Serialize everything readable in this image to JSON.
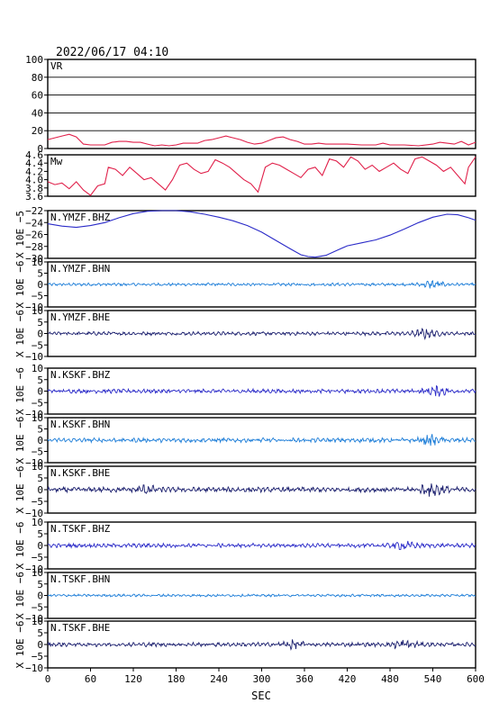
{
  "header": {
    "timestamp": "2022/06/17 04:10"
  },
  "chart_data": {
    "type": "line",
    "xlabel": "SEC",
    "xlim": [
      0,
      600
    ],
    "xticks": [
      "0",
      "60",
      "120",
      "180",
      "240",
      "300",
      "360",
      "420",
      "480",
      "540",
      "600"
    ],
    "panels": [
      {
        "label": "VR",
        "ylim": [
          0,
          100
        ],
        "yticks": [
          "100",
          "80",
          "60",
          "40",
          "20",
          "0"
        ],
        "grid": true,
        "color": "#e0204a",
        "points": [
          [
            0,
            10
          ],
          [
            10,
            12
          ],
          [
            20,
            14
          ],
          [
            30,
            16
          ],
          [
            40,
            13
          ],
          [
            50,
            5
          ],
          [
            60,
            4
          ],
          [
            80,
            4
          ],
          [
            90,
            7
          ],
          [
            100,
            8
          ],
          [
            110,
            8
          ],
          [
            120,
            7
          ],
          [
            130,
            7
          ],
          [
            140,
            5
          ],
          [
            150,
            3
          ],
          [
            160,
            4
          ],
          [
            170,
            3
          ],
          [
            180,
            4
          ],
          [
            190,
            6
          ],
          [
            200,
            6
          ],
          [
            210,
            6
          ],
          [
            220,
            9
          ],
          [
            230,
            10
          ],
          [
            240,
            12
          ],
          [
            250,
            14
          ],
          [
            260,
            12
          ],
          [
            270,
            10
          ],
          [
            280,
            7
          ],
          [
            290,
            5
          ],
          [
            300,
            6
          ],
          [
            310,
            9
          ],
          [
            320,
            12
          ],
          [
            330,
            13
          ],
          [
            340,
            10
          ],
          [
            350,
            8
          ],
          [
            360,
            5
          ],
          [
            370,
            5
          ],
          [
            380,
            6
          ],
          [
            390,
            5
          ],
          [
            400,
            5
          ],
          [
            420,
            5
          ],
          [
            440,
            4
          ],
          [
            460,
            4
          ],
          [
            470,
            6
          ],
          [
            480,
            4
          ],
          [
            500,
            4
          ],
          [
            520,
            3
          ],
          [
            540,
            5
          ],
          [
            550,
            7
          ],
          [
            560,
            6
          ],
          [
            570,
            5
          ],
          [
            580,
            8
          ],
          [
            590,
            4
          ],
          [
            600,
            7
          ]
        ]
      },
      {
        "label": "Mw",
        "ylim": [
          3.6,
          4.6
        ],
        "yticks": [
          "4.6",
          "4.4",
          "4.2",
          "4.0",
          "3.8",
          "3.6"
        ],
        "color": "#e0204a",
        "points": [
          [
            0,
            3.95
          ],
          [
            10,
            3.88
          ],
          [
            20,
            3.92
          ],
          [
            30,
            3.78
          ],
          [
            40,
            3.95
          ],
          [
            50,
            3.75
          ],
          [
            60,
            3.62
          ],
          [
            70,
            3.85
          ],
          [
            80,
            3.9
          ],
          [
            85,
            4.3
          ],
          [
            95,
            4.25
          ],
          [
            105,
            4.1
          ],
          [
            115,
            4.3
          ],
          [
            125,
            4.15
          ],
          [
            135,
            4.0
          ],
          [
            145,
            4.05
          ],
          [
            155,
            3.9
          ],
          [
            165,
            3.75
          ],
          [
            175,
            4.0
          ],
          [
            185,
            4.35
          ],
          [
            195,
            4.4
          ],
          [
            205,
            4.25
          ],
          [
            215,
            4.15
          ],
          [
            225,
            4.2
          ],
          [
            235,
            4.48
          ],
          [
            245,
            4.4
          ],
          [
            255,
            4.3
          ],
          [
            265,
            4.15
          ],
          [
            275,
            4.0
          ],
          [
            285,
            3.9
          ],
          [
            295,
            3.7
          ],
          [
            305,
            4.3
          ],
          [
            315,
            4.4
          ],
          [
            325,
            4.35
          ],
          [
            335,
            4.25
          ],
          [
            345,
            4.15
          ],
          [
            355,
            4.05
          ],
          [
            365,
            4.25
          ],
          [
            375,
            4.3
          ],
          [
            385,
            4.1
          ],
          [
            395,
            4.5
          ],
          [
            405,
            4.45
          ],
          [
            415,
            4.3
          ],
          [
            425,
            4.55
          ],
          [
            435,
            4.45
          ],
          [
            445,
            4.25
          ],
          [
            455,
            4.35
          ],
          [
            465,
            4.2
          ],
          [
            475,
            4.3
          ],
          [
            485,
            4.4
          ],
          [
            495,
            4.25
          ],
          [
            505,
            4.15
          ],
          [
            515,
            4.5
          ],
          [
            525,
            4.55
          ],
          [
            535,
            4.45
          ],
          [
            545,
            4.35
          ],
          [
            555,
            4.2
          ],
          [
            565,
            4.3
          ],
          [
            575,
            4.1
          ],
          [
            585,
            3.9
          ],
          [
            590,
            4.3
          ],
          [
            600,
            4.55
          ]
        ]
      },
      {
        "label": "N.YMZF.BHZ",
        "ylim": [
          -30,
          -22
        ],
        "yticks": [
          "−22",
          "−24",
          "−26",
          "−28",
          "−30"
        ],
        "ylabel": "X 10E −5",
        "color": "#2a2ac8",
        "points": [
          [
            0,
            -24.2
          ],
          [
            20,
            -24.6
          ],
          [
            40,
            -24.8
          ],
          [
            60,
            -24.5
          ],
          [
            80,
            -24.0
          ],
          [
            100,
            -23.2
          ],
          [
            120,
            -22.5
          ],
          [
            140,
            -22.1
          ],
          [
            160,
            -22.0
          ],
          [
            180,
            -22.0
          ],
          [
            200,
            -22.2
          ],
          [
            220,
            -22.6
          ],
          [
            240,
            -23.1
          ],
          [
            260,
            -23.7
          ],
          [
            280,
            -24.5
          ],
          [
            300,
            -25.6
          ],
          [
            320,
            -27.0
          ],
          [
            340,
            -28.4
          ],
          [
            355,
            -29.4
          ],
          [
            365,
            -29.7
          ],
          [
            375,
            -29.8
          ],
          [
            390,
            -29.5
          ],
          [
            405,
            -28.7
          ],
          [
            420,
            -27.9
          ],
          [
            440,
            -27.4
          ],
          [
            460,
            -26.9
          ],
          [
            480,
            -26.1
          ],
          [
            500,
            -25.1
          ],
          [
            520,
            -24.0
          ],
          [
            540,
            -23.1
          ],
          [
            560,
            -22.6
          ],
          [
            575,
            -22.7
          ],
          [
            590,
            -23.2
          ],
          [
            600,
            -23.6
          ]
        ]
      },
      {
        "label": "N.YMZF.BHN",
        "ylim": [
          -10,
          10
        ],
        "yticks": [
          "10",
          "5",
          "0",
          "−5",
          "−10"
        ],
        "ylabel": "X 10E −6",
        "color": "#1e7ed8",
        "amplitude": 0.6,
        "bursts": [
          [
            540,
            1.4
          ]
        ]
      },
      {
        "label": "N.YMZF.BHE",
        "ylim": [
          -10,
          10
        ],
        "yticks": [
          "10",
          "5",
          "0",
          "−5",
          "−10"
        ],
        "ylabel": "X 10E −6",
        "color": "#1b1f6e",
        "amplitude": 0.7,
        "bursts": [
          [
            530,
            1.6
          ]
        ]
      },
      {
        "label": "N.KSKF.BHZ",
        "ylim": [
          -10,
          10
        ],
        "yticks": [
          "10",
          "5",
          "0",
          "−5",
          "−10"
        ],
        "ylabel": "X 10E −6",
        "color": "#2a2ac8",
        "amplitude": 0.8,
        "bursts": [
          [
            545,
            1.8
          ]
        ]
      },
      {
        "label": "N.KSKF.BHN",
        "ylim": [
          -10,
          10
        ],
        "yticks": [
          "10",
          "5",
          "0",
          "−5",
          "−10"
        ],
        "ylabel": "X 10E −6",
        "color": "#1e7ed8",
        "amplitude": 0.9,
        "bursts": [
          [
            540,
            2.0
          ]
        ]
      },
      {
        "label": "N.KSKF.BHE",
        "ylim": [
          -10,
          10
        ],
        "yticks": [
          "10",
          "5",
          "0",
          "−5",
          "−10"
        ],
        "ylabel": "X 10E −6",
        "color": "#1b1f6e",
        "amplitude": 1.0,
        "bursts": [
          [
            540,
            2.5
          ],
          [
            140,
            1.3
          ]
        ]
      },
      {
        "label": "N.TSKF.BHZ",
        "ylim": [
          -10,
          10
        ],
        "yticks": [
          "10",
          "5",
          "0",
          "−5",
          "−10"
        ],
        "ylabel": "X 10E −6",
        "color": "#2a2ac8",
        "amplitude": 0.8,
        "bursts": [
          [
            500,
            1.4
          ]
        ]
      },
      {
        "label": "N.TSKF.BHN",
        "ylim": [
          -10,
          10
        ],
        "yticks": [
          "10",
          "5",
          "0",
          "−5",
          "−10"
        ],
        "ylabel": "X 10E −6",
        "color": "#1e7ed8",
        "amplitude": 0.5,
        "bursts": []
      },
      {
        "label": "N.TSKF.BHE",
        "ylim": [
          -10,
          10
        ],
        "yticks": [
          "10",
          "5",
          "0",
          "−5",
          "−10"
        ],
        "ylabel": "X 10E −6",
        "color": "#1b1f6e",
        "amplitude": 0.8,
        "bursts": [
          [
            340,
            1.4
          ],
          [
            500,
            1.5
          ]
        ]
      }
    ]
  }
}
